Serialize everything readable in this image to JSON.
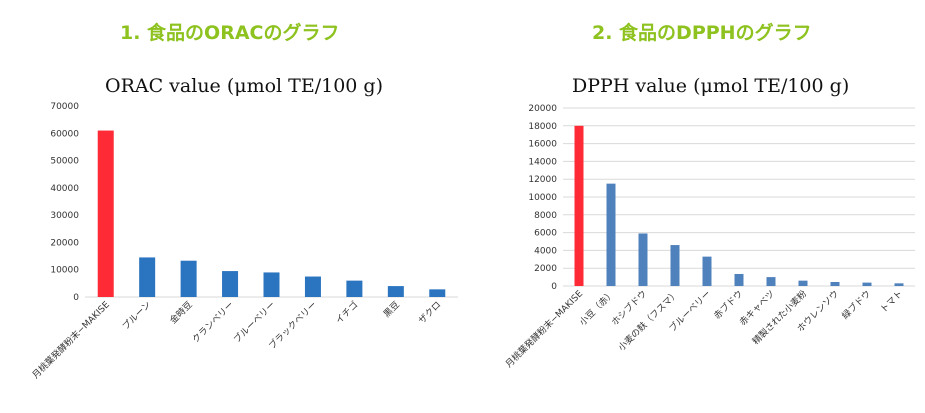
{
  "headings": {
    "left": "1. 食品のORACのグラフ",
    "right": "2. 食品のDPPHのグラフ"
  },
  "colors": {
    "highlight": "#fe2b37",
    "bar": "#2a74c0",
    "bar_right": "#4f81bd",
    "heading": "#8dc21f"
  },
  "chart_data": [
    {
      "type": "bar",
      "title": "ORAC value (μmol TE/100 g)",
      "xlabel": "",
      "ylabel": "",
      "ylim": [
        0,
        70000
      ],
      "yticks": [
        "0",
        "10000",
        "20000",
        "30000",
        "40000",
        "50000",
        "60000",
        "70000"
      ],
      "grid": false,
      "categories": [
        "月桃葉発酵粉末−MAKISE",
        "プルーン",
        "金時豆",
        "クランベリー",
        "ブルーベリー",
        "ブラックベリー",
        "イチゴ",
        "黒豆",
        "ザクロ"
      ],
      "values": [
        61000,
        14500,
        13300,
        9500,
        9000,
        7500,
        6000,
        4000,
        2800
      ],
      "highlight_index": 0
    },
    {
      "type": "bar",
      "title": "DPPH value (μmol TE/100 g)",
      "xlabel": "",
      "ylabel": "",
      "ylim": [
        0,
        20000
      ],
      "yticks": [
        "0",
        "2000",
        "4000",
        "6000",
        "8000",
        "10000",
        "12000",
        "14000",
        "16000",
        "18000",
        "20000"
      ],
      "grid": true,
      "categories": [
        "月桃葉発酵粉末−MAKISE",
        "小豆（赤）",
        "ホシブドウ",
        "小麦の麸（フスマ）",
        "ブルーベリー",
        "赤ブドウ",
        "赤キャベツ",
        "精製された小麦粉",
        "ホウレンソウ",
        "緑ブドウ",
        "トマト"
      ],
      "values": [
        18000,
        11500,
        5900,
        4600,
        3300,
        1350,
        1000,
        600,
        450,
        380,
        300
      ],
      "highlight_index": 0
    }
  ]
}
